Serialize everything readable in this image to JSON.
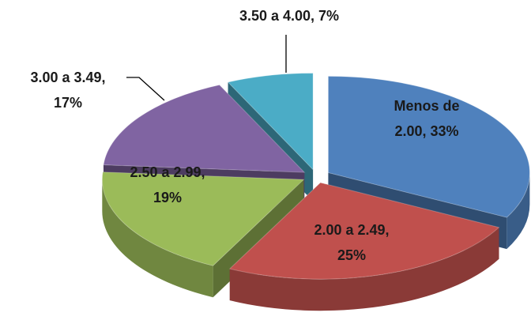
{
  "chart_data": {
    "type": "pie3d",
    "categories": [
      "Menos de 2.00",
      "2.00 a 2.49",
      "2.50 a 2.99",
      "3.00 a 3.49",
      "3.50 a 4.00"
    ],
    "values": [
      33,
      25,
      19,
      17,
      7
    ],
    "value_labels": [
      "Menos de 2.00, 33%",
      "2.00 a 2.49, 25%",
      "2.50 a 2.99, 19%",
      "3.00 a 3.49, 17%",
      "3.50 a 4.00, 7%"
    ],
    "colors": [
      "#4f81bd",
      "#c0504d",
      "#9bbb59",
      "#8064a2",
      "#4bacc6"
    ]
  }
}
